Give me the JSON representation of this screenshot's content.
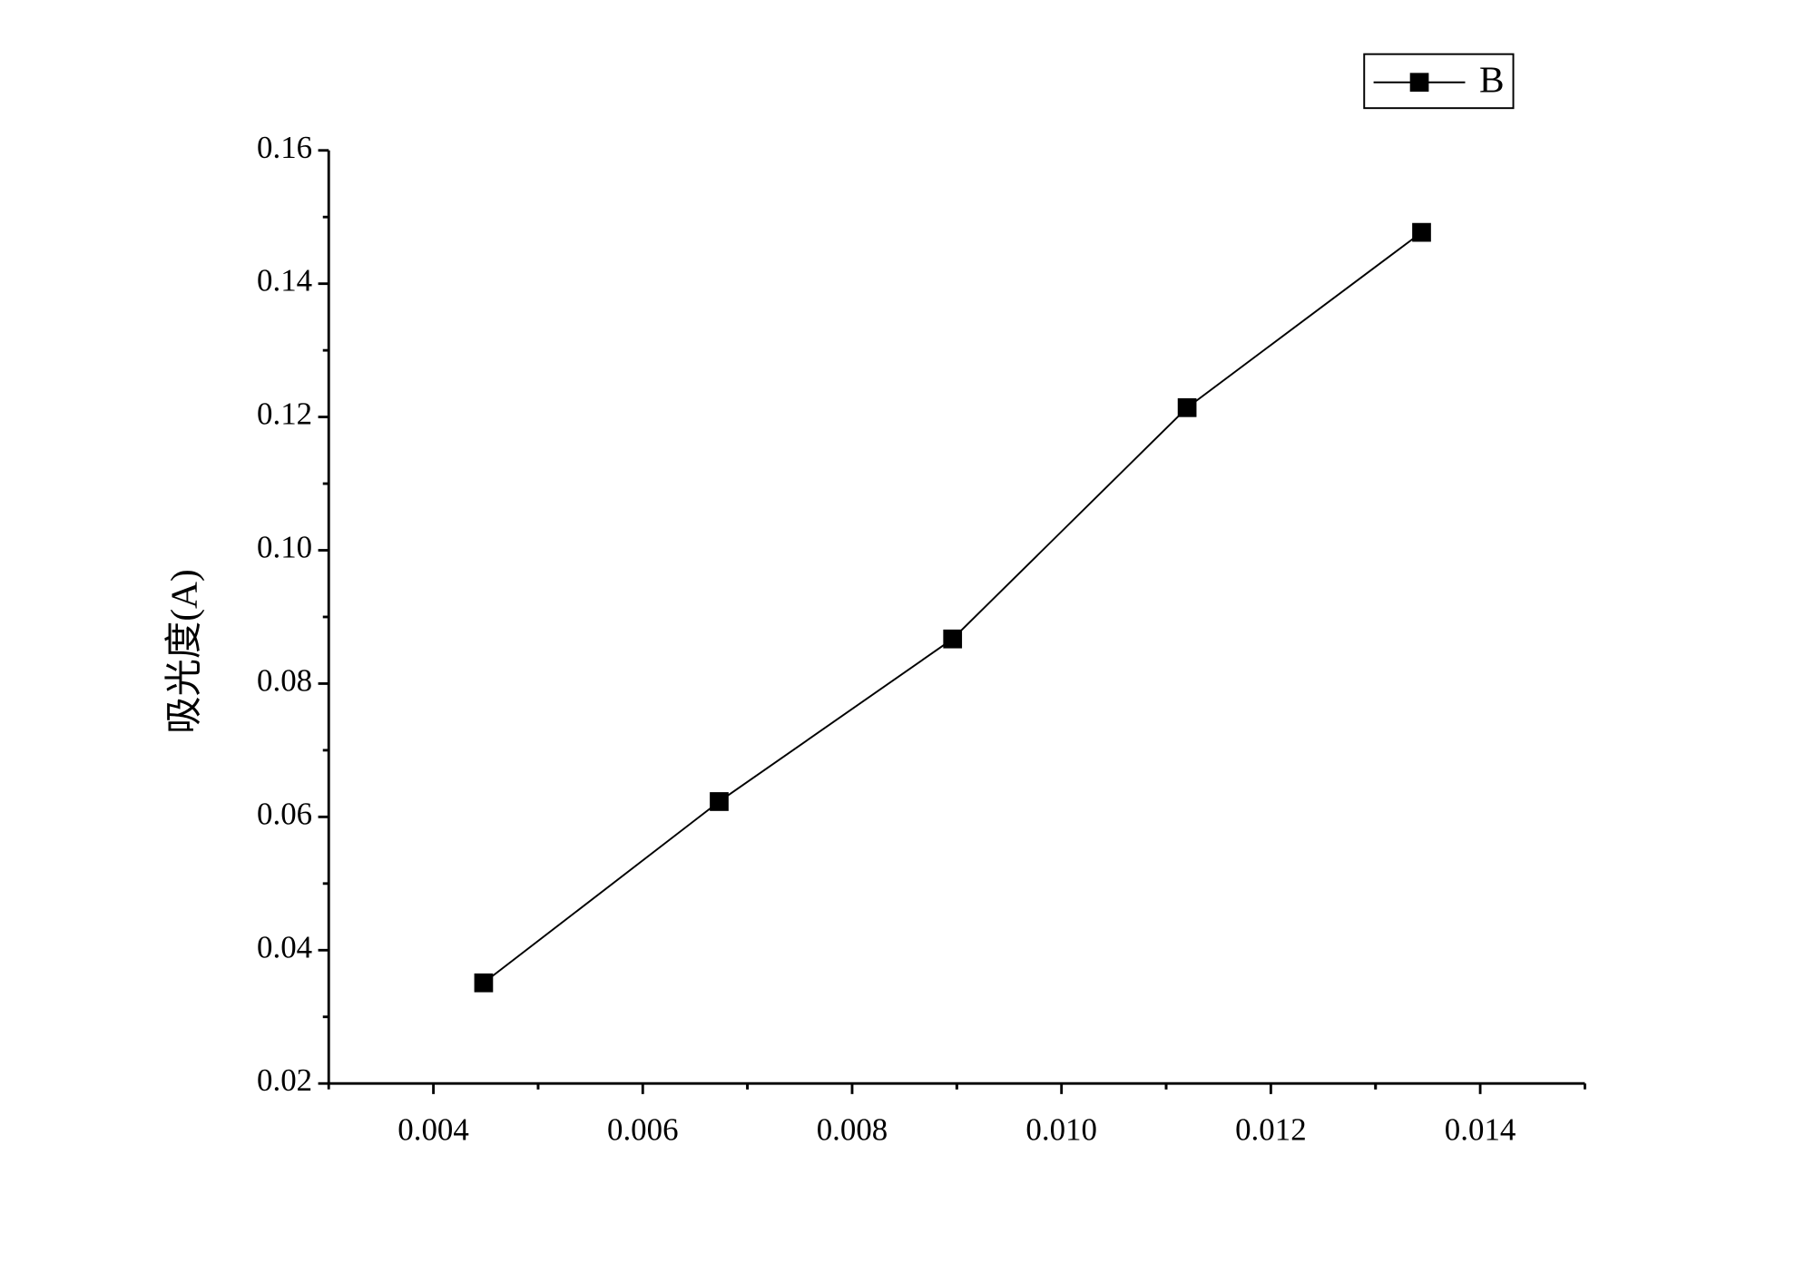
{
  "chart_data": {
    "type": "line",
    "y_label": "吸光度(A)",
    "x": [
      0.00448,
      0.00673,
      0.00896,
      0.0112,
      0.01344
    ],
    "series": [
      {
        "name": "B",
        "color": "#000000",
        "values": [
          0.0351,
          0.0623,
          0.0867,
          0.1214,
          0.1477
        ]
      }
    ],
    "xlim": [
      0.003,
      0.015
    ],
    "xticks": [
      0.004,
      0.006,
      0.008,
      {
        "value": 0.01,
        "label": "0.010"
      },
      0.012,
      0.014
    ],
    "ylim": [
      0.02,
      0.16
    ],
    "yticks": [
      0.02,
      0.04,
      0.06,
      0.08,
      {
        "value": 0.1,
        "label": "0.10"
      },
      0.12,
      0.14,
      0.16
    ],
    "legend": "top-right",
    "marker": "square"
  }
}
